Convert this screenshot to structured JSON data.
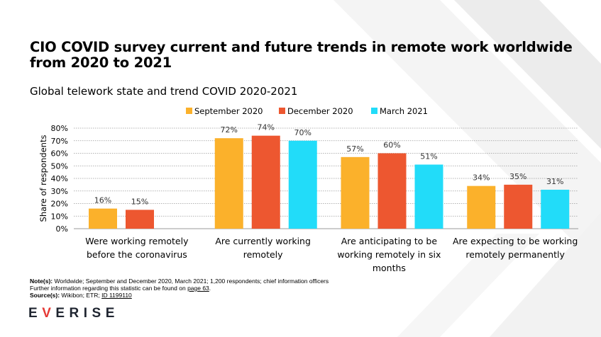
{
  "title": "CIO COVID survey current and future trends in remote work worldwide from 2020 to 2021",
  "subtitle": "Global telework state and trend COVID 2020-2021",
  "notes": {
    "note_label": "Note(s):",
    "note_text": " Worldwide; September and December 2020, March 2021; 1,200 respondents; chief information officers",
    "further_text": "Further information regarding this statistic can be found on ",
    "further_link": "page 63",
    "further_end": ".",
    "source_label": "Source(s):",
    "source_text": " Wikibon; ETR; ",
    "source_id": "ID 1199110"
  },
  "logo": {
    "prefix": "E",
    "accent": "V",
    "suffix": "ERISE"
  },
  "colors": {
    "september": "#fbb12b",
    "december": "#ed5730",
    "march": "#22dcf9",
    "logo_accent": "#e53935"
  },
  "chart_data": {
    "type": "bar",
    "title": "Global telework state and trend COVID 2020-2021",
    "xlabel": "",
    "ylabel": "Share of respondents",
    "ylim": [
      0,
      80
    ],
    "yticks": [
      "0%",
      "10%",
      "20%",
      "30%",
      "40%",
      "50%",
      "60%",
      "70%",
      "80%"
    ],
    "grid": true,
    "legend": "top-center",
    "categories": [
      [
        "Were working remotely",
        "before the coronavirus"
      ],
      [
        "Are currently working",
        "remotely"
      ],
      [
        "Are anticipating to be",
        "working remotely in six",
        "months"
      ],
      [
        "Are expecting to be working",
        "remotely permanently"
      ]
    ],
    "series": [
      {
        "name": "September 2020",
        "color": "#fbb12b",
        "values": [
          16,
          72,
          57,
          34
        ],
        "labels": [
          "16%",
          "72%",
          "57%",
          "34%"
        ]
      },
      {
        "name": "December 2020",
        "color": "#ed5730",
        "values": [
          15,
          74,
          60,
          35
        ],
        "labels": [
          "15%",
          "74%",
          "60%",
          "35%"
        ]
      },
      {
        "name": "March 2021",
        "color": "#22dcf9",
        "values": [
          null,
          70,
          51,
          31
        ],
        "labels": [
          "",
          "70%",
          "51%",
          "31%"
        ]
      }
    ]
  }
}
